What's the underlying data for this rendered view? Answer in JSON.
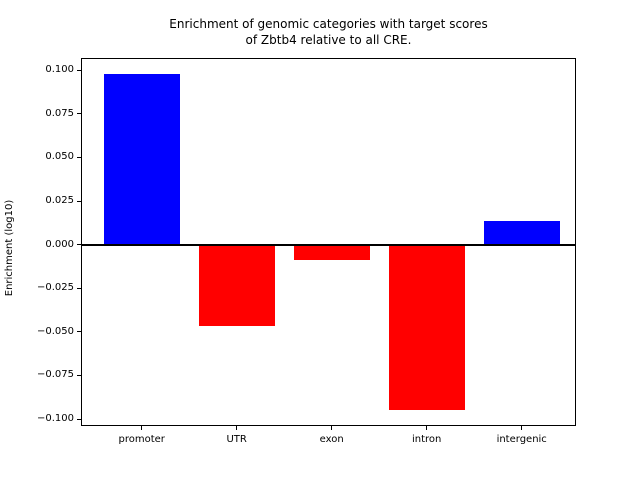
{
  "chart_data": {
    "type": "bar",
    "title": "Enrichment of genomic categories with target scores\nof Zbtb4 relative to all CRE.",
    "ylabel": "Enrichment (log10)",
    "xlabel": "",
    "categories": [
      "promoter",
      "UTR",
      "exon",
      "intron",
      "intergenic"
    ],
    "values": [
      0.0977,
      -0.0465,
      -0.0091,
      -0.0948,
      0.0136
    ],
    "positive_color": "#0000ff",
    "negative_color": "#ff0000",
    "ylim": [
      -0.104,
      0.107
    ],
    "ytick_values": [
      0.1,
      0.075,
      0.05,
      0.025,
      0.0,
      -0.025,
      -0.05,
      -0.075,
      -0.1
    ],
    "ytick_labels": [
      "0.100",
      "0.075",
      "0.050",
      "0.025",
      "0.000",
      "−0.025",
      "−0.050",
      "−0.075",
      "−0.100"
    ],
    "zero_line": true,
    "grid": false,
    "legend_position": "none",
    "axis_color": "#000000",
    "background_color": "#ffffff"
  }
}
